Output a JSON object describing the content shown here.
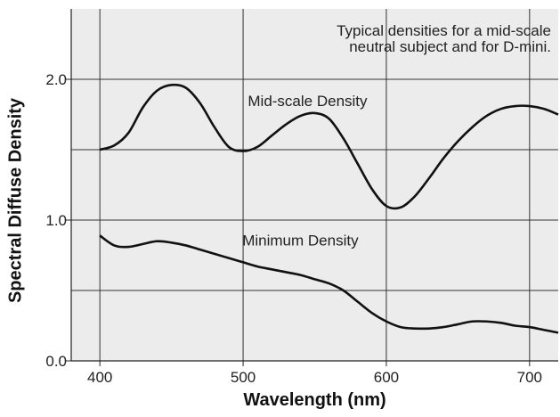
{
  "chart_data": {
    "type": "line",
    "title": "",
    "xlabel": "Wavelength (nm)",
    "ylabel": "Spectral Diffuse Density",
    "xlim": [
      380,
      720
    ],
    "ylim": [
      0,
      2.5
    ],
    "grid": true,
    "x_ticks": [
      {
        "value": 400,
        "label": "400"
      },
      {
        "value": 500,
        "label": "500"
      },
      {
        "value": 600,
        "label": "600"
      },
      {
        "value": 700,
        "label": "700"
      }
    ],
    "y_ticks": [
      {
        "value": 0.0,
        "label": "0.0"
      },
      {
        "value": 1.0,
        "label": "1.0"
      },
      {
        "value": 2.0,
        "label": "2.0"
      }
    ],
    "gridlines_y": [
      0.5,
      1.0,
      1.5,
      2.0
    ],
    "gridlines_x": [
      400,
      500,
      600,
      700
    ],
    "annotation_lines": [
      "Typical densities for a mid-scale",
      "neutral subject and for D-mini."
    ],
    "series": [
      {
        "name": "Mid-scale Density",
        "color": "#111111",
        "points": [
          [
            400,
            1.5
          ],
          [
            410,
            1.53
          ],
          [
            420,
            1.62
          ],
          [
            430,
            1.8
          ],
          [
            440,
            1.92
          ],
          [
            450,
            1.96
          ],
          [
            460,
            1.94
          ],
          [
            470,
            1.83
          ],
          [
            480,
            1.66
          ],
          [
            490,
            1.52
          ],
          [
            500,
            1.49
          ],
          [
            510,
            1.52
          ],
          [
            520,
            1.6
          ],
          [
            530,
            1.68
          ],
          [
            540,
            1.74
          ],
          [
            550,
            1.76
          ],
          [
            560,
            1.72
          ],
          [
            570,
            1.58
          ],
          [
            580,
            1.4
          ],
          [
            590,
            1.22
          ],
          [
            600,
            1.1
          ],
          [
            610,
            1.09
          ],
          [
            620,
            1.17
          ],
          [
            630,
            1.3
          ],
          [
            640,
            1.44
          ],
          [
            650,
            1.56
          ],
          [
            660,
            1.66
          ],
          [
            670,
            1.74
          ],
          [
            680,
            1.79
          ],
          [
            690,
            1.81
          ],
          [
            700,
            1.81
          ],
          [
            710,
            1.79
          ],
          [
            720,
            1.75
          ]
        ]
      },
      {
        "name": "Minimum Density",
        "color": "#111111",
        "points": [
          [
            400,
            0.89
          ],
          [
            410,
            0.82
          ],
          [
            420,
            0.81
          ],
          [
            430,
            0.83
          ],
          [
            440,
            0.85
          ],
          [
            450,
            0.84
          ],
          [
            460,
            0.82
          ],
          [
            470,
            0.79
          ],
          [
            480,
            0.76
          ],
          [
            490,
            0.73
          ],
          [
            500,
            0.7
          ],
          [
            510,
            0.67
          ],
          [
            520,
            0.65
          ],
          [
            530,
            0.63
          ],
          [
            540,
            0.61
          ],
          [
            550,
            0.58
          ],
          [
            560,
            0.55
          ],
          [
            570,
            0.5
          ],
          [
            580,
            0.42
          ],
          [
            590,
            0.34
          ],
          [
            600,
            0.28
          ],
          [
            610,
            0.24
          ],
          [
            620,
            0.23
          ],
          [
            630,
            0.23
          ],
          [
            640,
            0.24
          ],
          [
            650,
            0.26
          ],
          [
            660,
            0.28
          ],
          [
            670,
            0.28
          ],
          [
            680,
            0.27
          ],
          [
            690,
            0.25
          ],
          [
            700,
            0.24
          ],
          [
            710,
            0.22
          ],
          [
            720,
            0.2
          ]
        ]
      }
    ],
    "series_labels": [
      {
        "series": 0,
        "text": "Mid-scale Density",
        "x": 545,
        "y": 1.81
      },
      {
        "series": 1,
        "text": "Minimum Density",
        "x": 540,
        "y": 0.82
      }
    ]
  }
}
